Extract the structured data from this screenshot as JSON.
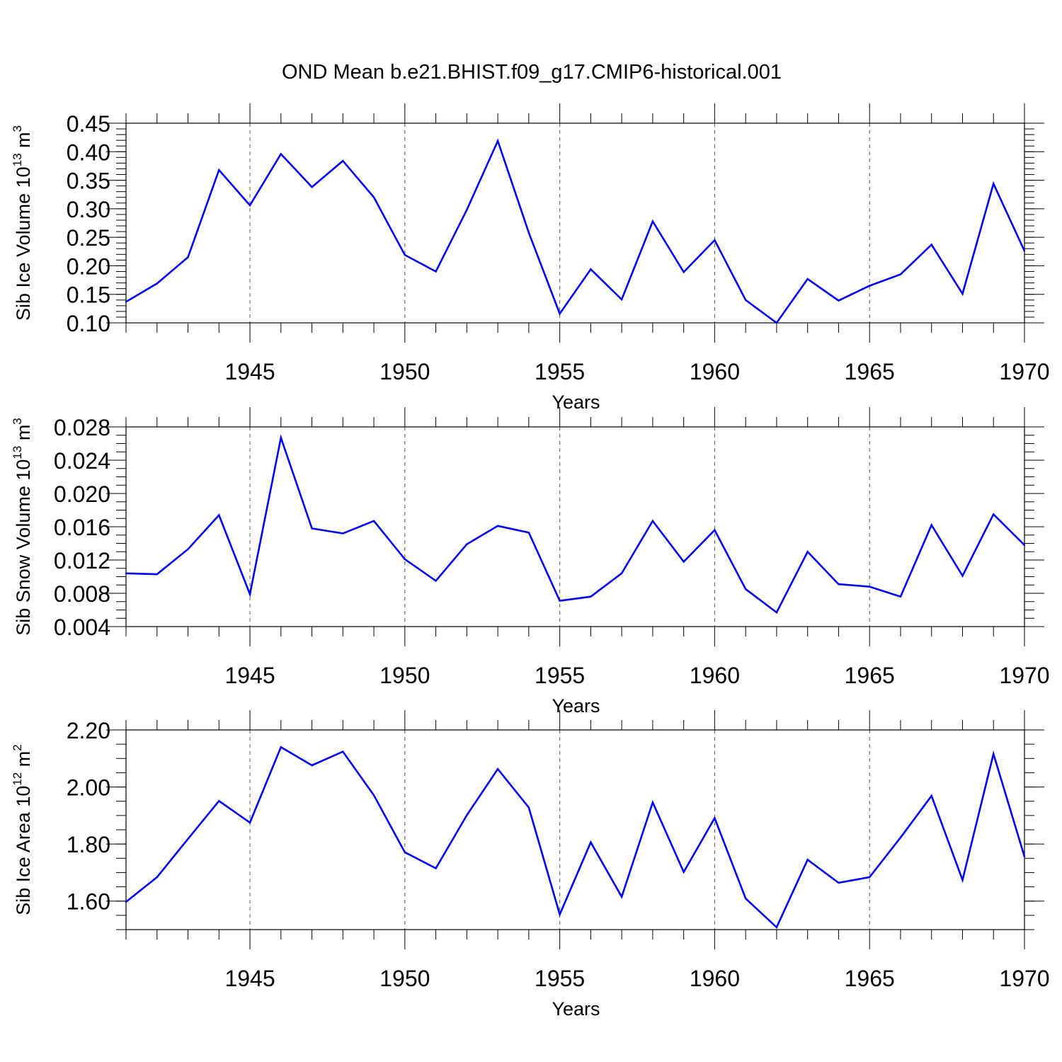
{
  "title": "OND Mean b.e21.BHIST.f09_g17.CMIP6-historical.001",
  "chart_data": [
    {
      "type": "line",
      "ylabel": "Sib Ice Volume 10",
      "ylabel_sup": "13",
      "ylabel_unit": " m",
      "ylabel_unit_sup": "3",
      "xlabel": "Years",
      "xlim": [
        1941,
        1970
      ],
      "ylim": [
        0.1,
        0.45
      ],
      "yticks": [
        0.1,
        0.15,
        0.2,
        0.25,
        0.3,
        0.35,
        0.4,
        0.45
      ],
      "ytick_labels": [
        "0.10",
        "0.15",
        "0.20",
        "0.25",
        "0.30",
        "0.35",
        "0.40",
        "0.45"
      ],
      "yminor_step": 0.01,
      "xticks": [
        1945,
        1950,
        1955,
        1960,
        1965,
        1970
      ],
      "xtick_labels": [
        "1945",
        "1950",
        "1955",
        "1960",
        "1965",
        "1970"
      ],
      "x": [
        1941,
        1942,
        1943,
        1944,
        1945,
        1946,
        1947,
        1948,
        1949,
        1950,
        1951,
        1952,
        1953,
        1954,
        1955,
        1956,
        1957,
        1958,
        1959,
        1960,
        1961,
        1962,
        1963,
        1964,
        1965,
        1966,
        1967,
        1968,
        1969,
        1970
      ],
      "series": [
        {
          "name": "Sib Ice Volume",
          "color": "#0000ff",
          "values": [
            0.137,
            0.169,
            0.215,
            0.368,
            0.306,
            0.396,
            0.338,
            0.384,
            0.32,
            0.219,
            0.19,
            0.298,
            0.419,
            0.258,
            0.116,
            0.194,
            0.141,
            0.278,
            0.189,
            0.245,
            0.14,
            0.1,
            0.177,
            0.139,
            0.165,
            0.185,
            0.237,
            0.151,
            0.344,
            0.226
          ]
        }
      ]
    },
    {
      "type": "line",
      "ylabel": "Sib Snow Volume 10",
      "ylabel_sup": "13",
      "ylabel_unit": " m",
      "ylabel_unit_sup": "3",
      "xlabel": "Years",
      "xlim": [
        1941,
        1970
      ],
      "ylim": [
        0.004,
        0.028
      ],
      "yticks": [
        0.004,
        0.008,
        0.012,
        0.016,
        0.02,
        0.024,
        0.028
      ],
      "ytick_labels": [
        "0.004",
        "0.008",
        "0.012",
        "0.016",
        "0.020",
        "0.024",
        "0.028"
      ],
      "yminor_step": 0.001,
      "xticks": [
        1945,
        1950,
        1955,
        1960,
        1965,
        1970
      ],
      "xtick_labels": [
        "1945",
        "1950",
        "1955",
        "1960",
        "1965",
        "1970"
      ],
      "x": [
        1941,
        1942,
        1943,
        1944,
        1945,
        1946,
        1947,
        1948,
        1949,
        1950,
        1951,
        1952,
        1953,
        1954,
        1955,
        1956,
        1957,
        1958,
        1959,
        1960,
        1961,
        1962,
        1963,
        1964,
        1965,
        1966,
        1967,
        1968,
        1969,
        1970
      ],
      "series": [
        {
          "name": "Sib Snow Volume",
          "color": "#0000ff",
          "values": [
            0.0104,
            0.0103,
            0.0133,
            0.0174,
            0.0079,
            0.0267,
            0.0158,
            0.0152,
            0.0167,
            0.0121,
            0.0095,
            0.0139,
            0.0161,
            0.0153,
            0.0071,
            0.0076,
            0.0104,
            0.0167,
            0.0118,
            0.0156,
            0.0085,
            0.0057,
            0.013,
            0.0091,
            0.0088,
            0.0076,
            0.0162,
            0.0101,
            0.0175,
            0.0138
          ]
        }
      ]
    },
    {
      "type": "line",
      "ylabel": "Sib Ice Area 10",
      "ylabel_sup": "12",
      "ylabel_unit": " m",
      "ylabel_unit_sup": "2",
      "xlabel": "Years",
      "xlim": [
        1941,
        1970
      ],
      "ylim": [
        1.5,
        2.2
      ],
      "yticks": [
        1.6,
        1.8,
        2.0,
        2.2
      ],
      "ytick_labels": [
        "1.60",
        "1.80",
        "2.00",
        "2.20"
      ],
      "yminor_step": 0.05,
      "xticks": [
        1945,
        1950,
        1955,
        1960,
        1965,
        1970
      ],
      "xtick_labels": [
        "1945",
        "1950",
        "1955",
        "1960",
        "1965",
        "1970"
      ],
      "x": [
        1941,
        1942,
        1943,
        1944,
        1945,
        1946,
        1947,
        1948,
        1949,
        1950,
        1951,
        1952,
        1953,
        1954,
        1955,
        1956,
        1957,
        1958,
        1959,
        1960,
        1961,
        1962,
        1963,
        1964,
        1965,
        1966,
        1967,
        1968,
        1969,
        1970
      ],
      "series": [
        {
          "name": "Sib Ice Area",
          "color": "#0000ff",
          "values": [
            1.597,
            1.684,
            1.818,
            1.951,
            1.875,
            2.14,
            2.076,
            2.124,
            1.971,
            1.771,
            1.715,
            1.901,
            2.063,
            1.928,
            1.553,
            1.806,
            1.615,
            1.946,
            1.702,
            1.891,
            1.609,
            1.508,
            1.745,
            1.664,
            1.684,
            1.823,
            1.969,
            1.674,
            2.116,
            1.756
          ]
        }
      ]
    }
  ]
}
